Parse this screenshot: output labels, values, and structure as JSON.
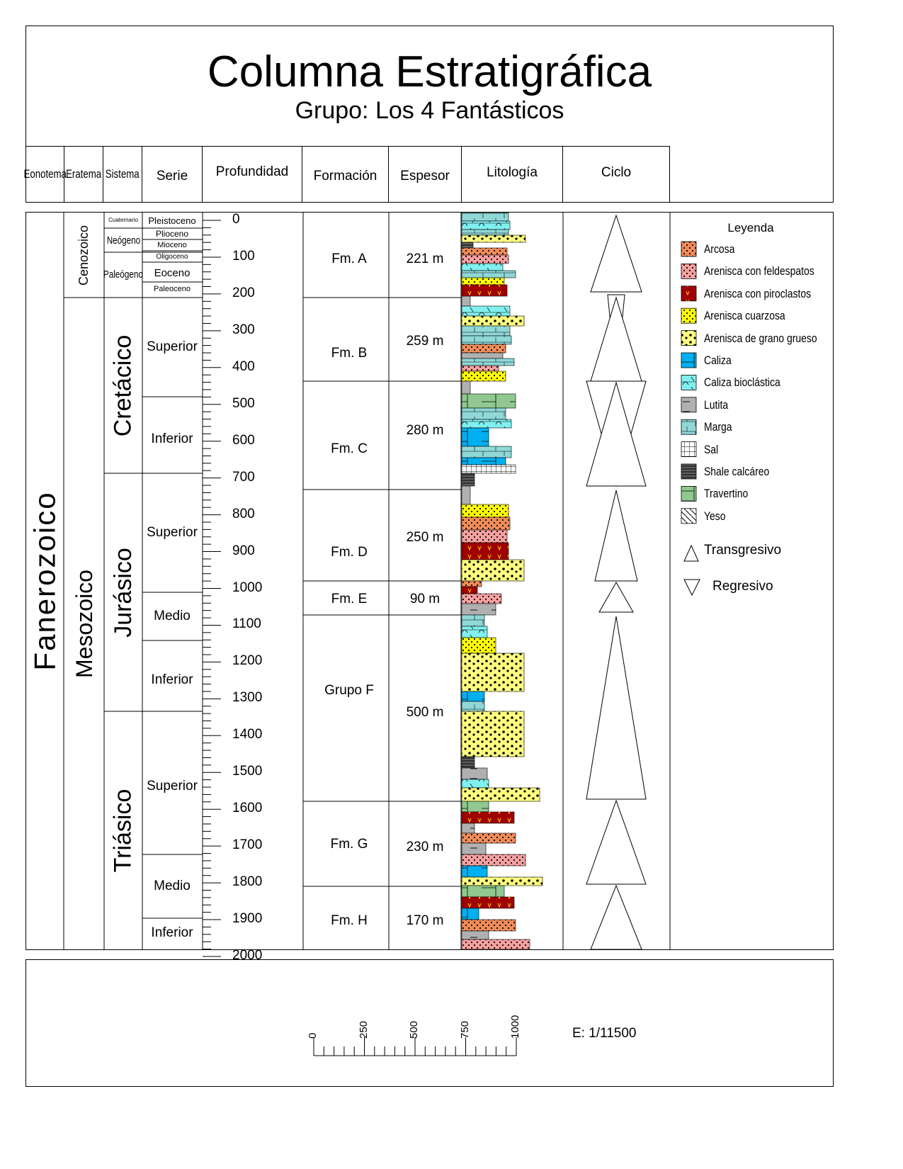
{
  "title": "Columna Estratigráfica",
  "subtitle": "Grupo: Los 4 Fantásticos",
  "headers": {
    "eonotema": "Eonotema",
    "eratema": "Eratema",
    "sistema": "Sistema",
    "serie": "Serie",
    "profundidad": "Profundidad",
    "formacion": "Formación",
    "espesor": "Espesor",
    "litologia": "Litología",
    "ciclo": "Ciclo"
  },
  "eon": "Fanerozoico",
  "eras": {
    "cenozoico": "Cenozoico",
    "mesozoico": "Mesozoico"
  },
  "systems": {
    "cuaternario": "Cuaternario",
    "neogeno": "Neógeno",
    "paleogeno": "Paleógeno",
    "cretacico": "Cretácico",
    "jurasico": "Jurásico",
    "triasico": "Triásico"
  },
  "series": {
    "pleistoceno": "Pleistoceno",
    "plioceno": "Plioceno",
    "mioceno": "Mioceno",
    "oligoceno": "Oligoceno",
    "eoceno": "Eoceno",
    "paleoceno": "Paleoceno",
    "cret_superior": "Superior",
    "cret_inferior": "Inferior",
    "jur_superior": "Superior",
    "jur_medio": "Medio",
    "jur_inferior": "Inferior",
    "tri_superior": "Superior",
    "tri_medio": "Medio",
    "tri_inferior": "Inferior"
  },
  "depth_labels": [
    "0",
    "100",
    "200",
    "300",
    "400",
    "500",
    "600",
    "700",
    "800",
    "900",
    "1000",
    "1100",
    "1200",
    "1300",
    "1400",
    "1500",
    "1600",
    "1700",
    "1800",
    "1900",
    "2000"
  ],
  "formations": [
    {
      "name": "Fm. A",
      "thickness": "221 m"
    },
    {
      "name": "Fm. B",
      "thickness": "259 m"
    },
    {
      "name": "Fm. C",
      "thickness": "280 m"
    },
    {
      "name": "Fm. D",
      "thickness": "250 m"
    },
    {
      "name": "Fm. E",
      "thickness": "90 m"
    },
    {
      "name": "Grupo F",
      "thickness": "500 m"
    },
    {
      "name": "Fm. G",
      "thickness": "230 m"
    },
    {
      "name": "Fm. H",
      "thickness": "170 m"
    }
  ],
  "legend": {
    "title": "Leyenda",
    "items": [
      {
        "label": "Arcosa",
        "color": "#f08c5a",
        "pattern": "dots"
      },
      {
        "label": "Arenisca con feldespatos",
        "color": "#f5a0a0",
        "pattern": "dots"
      },
      {
        "label": "Arenisca con piroclastos",
        "color": "#a00000",
        "pattern": "v"
      },
      {
        "label": "Arenisca cuarzosa",
        "color": "#ffff00",
        "pattern": "dots"
      },
      {
        "label": "Arenisca de grano grueso",
        "color": "#ffff80",
        "pattern": "bigdots"
      },
      {
        "label": "Caliza",
        "color": "#00b0f0",
        "pattern": "line"
      },
      {
        "label": "Caliza bioclástica",
        "color": "#80f0f0",
        "pattern": "bio"
      },
      {
        "label": "Lutita",
        "color": "#b0b0b0",
        "pattern": "dash"
      },
      {
        "label": "Marga",
        "color": "#90d8d8",
        "pattern": "marl"
      },
      {
        "label": "Sal",
        "color": "#ffffff",
        "pattern": "grid"
      },
      {
        "label": "Shale calcáreo",
        "color": "#606060",
        "pattern": "hlines"
      },
      {
        "label": "Travertino",
        "color": "#90c890",
        "pattern": "line"
      },
      {
        "label": "Yeso",
        "color": "#ffffff",
        "pattern": "diag"
      }
    ],
    "transgresivo": "Transgresivo",
    "regresivo": "Regresivo"
  },
  "scale": {
    "ticks": [
      "0",
      "250",
      "500",
      "750",
      "1000"
    ],
    "label": "E: 1/11500"
  }
}
